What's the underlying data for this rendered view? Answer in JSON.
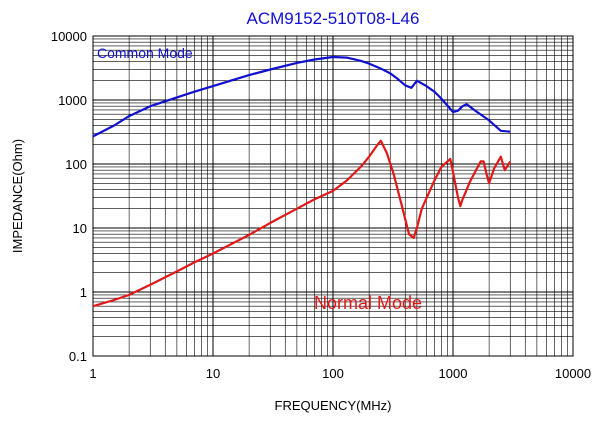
{
  "chart_data": {
    "type": "line",
    "title": "ACM9152-510T08-L46",
    "xlabel": "FREQUENCY(MHz)",
    "ylabel": "IMPEDANCE(Ohm)",
    "xscale": "log",
    "yscale": "log",
    "xlim": [
      1,
      10000
    ],
    "ylim": [
      0.1,
      10000
    ],
    "grid": true,
    "xticks": [
      "1",
      "10",
      "100",
      "1000",
      "10000"
    ],
    "yticks": [
      "10000",
      "1000",
      "100",
      "10",
      "1",
      "0.1"
    ],
    "series": [
      {
        "name": "Common Mode",
        "color": "#1010d0",
        "label_position": "top-left",
        "x": [
          1,
          1.5,
          2,
          3,
          5,
          7,
          10,
          20,
          30,
          50,
          70,
          100,
          130,
          170,
          200,
          250,
          300,
          350,
          400,
          450,
          500,
          600,
          700,
          800,
          1000,
          1100,
          1200,
          1300,
          1500,
          2000,
          2500,
          3000
        ],
        "y": [
          270,
          400,
          560,
          800,
          1100,
          1350,
          1650,
          2450,
          3000,
          3800,
          4300,
          4700,
          4600,
          4100,
          3700,
          3100,
          2600,
          2100,
          1700,
          1550,
          2000,
          1650,
          1350,
          1050,
          650,
          680,
          800,
          860,
          700,
          480,
          330,
          320
        ]
      },
      {
        "name": "Normal Mode",
        "color": "#e01818",
        "label_position": "bottom-center",
        "x": [
          1,
          1.5,
          2,
          3,
          5,
          7,
          10,
          20,
          30,
          50,
          70,
          100,
          130,
          170,
          200,
          230,
          250,
          280,
          320,
          380,
          430,
          470,
          500,
          550,
          700,
          800,
          900,
          950,
          1000,
          1100,
          1150,
          1200,
          1400,
          1700,
          1800,
          1900,
          2000,
          2200,
          2500,
          2700,
          3000
        ],
        "y": [
          0.6,
          0.75,
          0.9,
          1.3,
          2.1,
          2.9,
          4,
          7.8,
          12,
          20,
          28,
          38,
          55,
          90,
          130,
          190,
          230,
          150,
          70,
          20,
          8,
          7,
          10,
          20,
          55,
          90,
          110,
          120,
          75,
          30,
          22,
          28,
          55,
          110,
          110,
          70,
          50,
          85,
          130,
          80,
          110
        ]
      }
    ]
  }
}
